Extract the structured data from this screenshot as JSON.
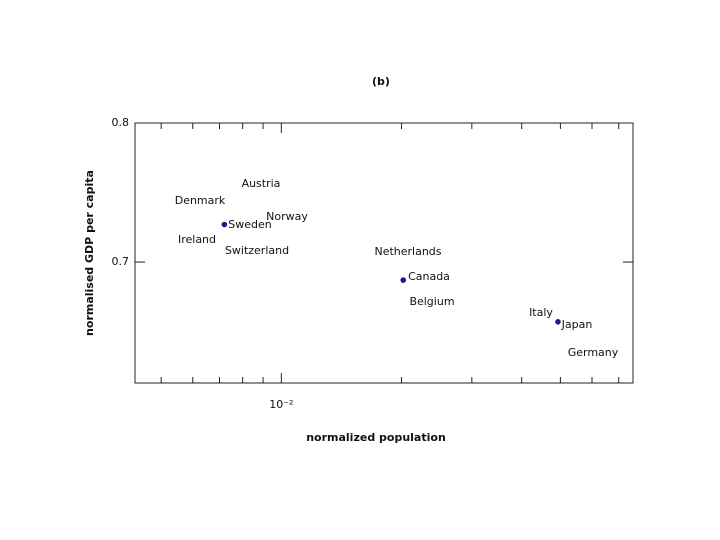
{
  "chart_data": {
    "type": "scatter",
    "title": "(b)",
    "x_label": "normalized population",
    "y_label": "normalised GDP per capita",
    "xscale": "log",
    "x": [
      0.0072,
      0.0202,
      0.0493
    ],
    "series": [
      {
        "color": "#1a1a8c",
        "values": [
          0.727,
          0.687,
          0.657
        ]
      }
    ],
    "xlim": [
      0.0043,
      0.076
    ],
    "ylim": [
      0.613,
      0.8
    ],
    "xticks": [
      {
        "value": 0.01,
        "label": "10⁻²"
      }
    ],
    "xminorticks": [
      0.005,
      0.006,
      0.007,
      0.008,
      0.009,
      0.02,
      0.03,
      0.04,
      0.05,
      0.06,
      0.07
    ],
    "yticks": [
      0.7,
      0.8
    ],
    "annotations": [
      "Austria",
      "Denmark",
      "Sweden",
      "Norway",
      "Ireland",
      "Switzerland",
      "Netherlands",
      "Canada",
      "Belgium",
      "Italy",
      "Japan",
      "Germany"
    ]
  }
}
